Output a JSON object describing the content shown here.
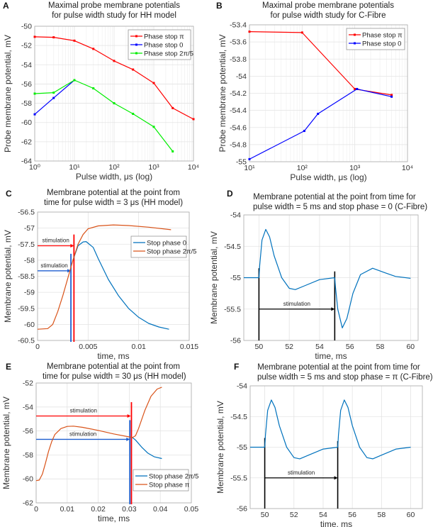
{
  "panels": [
    {
      "letter": "A",
      "title": [
        "Maximal probe membrane potentials",
        "for pulse width study for HH model"
      ]
    },
    {
      "letter": "B",
      "title": [
        "Maximal probe membrane potentials",
        "for pulse width study for C-Fibre"
      ]
    },
    {
      "letter": "C",
      "title": [
        "Membrane potential at the point from",
        "time for pulse width = 3 μs (HH model)"
      ]
    },
    {
      "letter": "D",
      "title": [
        "Membrane potential at the point from time for",
        "pulse width = 5 ms and stop phase = 0 (C-Fibre)"
      ]
    },
    {
      "letter": "E",
      "title": [
        "Membrane potential at the point from",
        "time for pulse width = 30 μs (HH model)"
      ]
    },
    {
      "letter": "F",
      "title": [
        "Membrane potential at the point from time for",
        "pulse width = 5 ms and stop phase = π (C-Fibre)"
      ]
    }
  ],
  "chart_data": [
    {
      "type": "line",
      "title": "Maximal probe membrane potentials for pulse width study for HH model",
      "xlabel": "Pulse width, μs (log)",
      "ylabel": "Probe membrane potential, mV",
      "xscale": "log",
      "xlim": [
        1,
        10000
      ],
      "ylim": [
        -64,
        -50
      ],
      "grid": true,
      "legend": "top-right",
      "markers": true,
      "xticks": [
        1,
        10,
        100,
        1000,
        10000
      ],
      "xticklabels": [
        "10⁰",
        "10¹",
        "10²",
        "10³",
        "10⁴"
      ],
      "yticks": [
        -64,
        -62,
        -60,
        -58,
        -56,
        -54,
        -52,
        -50
      ],
      "yticklabels": [
        "-64",
        "-62",
        "-60",
        "-58",
        "-56",
        "-54",
        "-52",
        "-50"
      ],
      "series": [
        {
          "name": "Phase stop π",
          "color": "#ff0000",
          "points": [
            [
              1,
              -51.1
            ],
            [
              3,
              -51.15
            ],
            [
              10,
              -51.5
            ],
            [
              30,
              -52.35
            ],
            [
              100,
              -53.6
            ],
            [
              300,
              -54.5
            ],
            [
              1000,
              -55.9
            ],
            [
              3000,
              -58.5
            ],
            [
              10000,
              -59.65
            ]
          ]
        },
        {
          "name": "Phase stop 0",
          "color": "#0000ff",
          "points": [
            [
              1,
              -59.15
            ],
            [
              3,
              -57.45
            ],
            [
              10,
              -55.6
            ]
          ]
        },
        {
          "name": "Phase stop 2π/5",
          "color": "#00ee00",
          "points": [
            [
              1,
              -57.0
            ],
            [
              3,
              -56.9
            ],
            [
              10,
              -55.6
            ],
            [
              30,
              -56.45
            ],
            [
              100,
              -58.0
            ],
            [
              300,
              -59.1
            ],
            [
              1000,
              -60.45
            ],
            [
              3000,
              -63.0
            ]
          ]
        }
      ]
    },
    {
      "type": "line",
      "title": "Maximal probe membrane potentials for pulse width study for C-Fibre",
      "xlabel": "Pulse width, μs (log)",
      "ylabel": "Probe membrane potential, mV",
      "xscale": "log",
      "xlim": [
        10,
        10000
      ],
      "ylim": [
        -55,
        -53.4
      ],
      "grid": true,
      "legend": "top-right",
      "markers": true,
      "xticks": [
        10,
        100,
        1000,
        10000
      ],
      "xticklabels": [
        "10¹",
        "10²",
        "10³",
        "10⁴"
      ],
      "yticks": [
        -55,
        -54.8,
        -54.6,
        -54.4,
        -54.2,
        -54,
        -53.8,
        -53.6,
        -53.4
      ],
      "yticklabels": [
        "-55",
        "-54.8",
        "-54.6",
        "-54.4",
        "-54.2",
        "-54",
        "-53.8",
        "-53.6",
        "-53.4"
      ],
      "series": [
        {
          "name": "Phase stop π",
          "color": "#ff0000",
          "points": [
            [
              10,
              -53.48
            ],
            [
              100,
              -53.49
            ],
            [
              1000,
              -54.15
            ],
            [
              5000,
              -54.22
            ]
          ]
        },
        {
          "name": "Phase stop 0",
          "color": "#0000ff",
          "points": [
            [
              10,
              -54.97
            ],
            [
              110,
              -54.64
            ],
            [
              200,
              -54.44
            ],
            [
              1100,
              -54.15
            ],
            [
              5000,
              -54.24
            ]
          ]
        }
      ]
    },
    {
      "type": "line",
      "title": "Membrane potential at the point from time for pulse width = 3 μs (HH model)",
      "xlabel": "time, ms",
      "ylabel": "Membrane potential, mV",
      "xscale": "linear",
      "xlim": [
        0,
        0.015
      ],
      "ylim": [
        -60.5,
        -56.5
      ],
      "grid": true,
      "legend": "top-right",
      "markers": false,
      "xticks": [
        0,
        0.005,
        0.01,
        0.015
      ],
      "xticklabels": [
        "0",
        "0.005",
        "0.01",
        "0.015"
      ],
      "yticks": [
        -60.5,
        -60,
        -59.5,
        -59,
        -58.5,
        -58,
        -57.5,
        -57,
        -56.5
      ],
      "yticklabels": [
        "-60.5",
        "-60",
        "-59.5",
        "-59",
        "-58.5",
        "-58",
        "-57.5",
        "-57",
        "-56.5"
      ],
      "series": [
        {
          "name": "Stop phase 0",
          "color": "#0072bd",
          "points": [
            [
              0.0035,
              -58.0
            ],
            [
              0.004,
              -57.55
            ],
            [
              0.0045,
              -57.43
            ],
            [
              0.0048,
              -57.42
            ],
            [
              0.0055,
              -57.6
            ],
            [
              0.006,
              -57.95
            ],
            [
              0.007,
              -58.6
            ],
            [
              0.008,
              -59.1
            ],
            [
              0.009,
              -59.5
            ],
            [
              0.01,
              -59.78
            ],
            [
              0.011,
              -59.97
            ],
            [
              0.012,
              -60.08
            ],
            [
              0.013,
              -60.15
            ]
          ]
        },
        {
          "name": "Stop phase 2π/5",
          "color": "#d95319",
          "points": [
            [
              0,
              -60.15
            ],
            [
              0.001,
              -60.13
            ],
            [
              0.0015,
              -60.0
            ],
            [
              0.002,
              -59.6
            ],
            [
              0.0025,
              -59.1
            ],
            [
              0.003,
              -58.55
            ],
            [
              0.0035,
              -58.0
            ],
            [
              0.004,
              -57.5
            ],
            [
              0.0045,
              -57.2
            ],
            [
              0.005,
              -57.02
            ],
            [
              0.006,
              -56.93
            ],
            [
              0.0075,
              -56.9
            ],
            [
              0.009,
              -56.92
            ],
            [
              0.011,
              -56.97
            ],
            [
              0.0132,
              -57.05
            ]
          ]
        }
      ],
      "annotations": [
        {
          "label": "stimulation",
          "color": "#ff0000",
          "y": -57.55,
          "x_start": 0,
          "x_end": 0.0036,
          "vline_x": 0.0036,
          "vline_y": [
            -57.2,
            -60.7
          ]
        },
        {
          "label": "stimulation",
          "color": "#1f5fd0",
          "y": -58.33,
          "x_start": 0,
          "x_end": 0.0033,
          "vline_x": 0.0033,
          "vline_y": [
            -57.8,
            -60.7
          ]
        }
      ]
    },
    {
      "type": "line",
      "title": "Membrane potential at the point from time for pulse width = 5 ms and stop phase = 0 (C-Fibre)",
      "xlabel": "time, ms",
      "ylabel": "Membrane potential, mV",
      "xscale": "linear",
      "xlim": [
        49,
        60.5
      ],
      "ylim": [
        -56,
        -54
      ],
      "grid": true,
      "legend": "none",
      "markers": false,
      "xticks": [
        50,
        52,
        54,
        56,
        58,
        60
      ],
      "xticklabels": [
        "50",
        "52",
        "54",
        "56",
        "58",
        "60"
      ],
      "yticks": [
        -56,
        -55.5,
        -55,
        -54.5,
        -54
      ],
      "yticklabels": [
        "-56",
        "-55.5",
        "-55",
        "-54.5",
        "-54"
      ],
      "series": [
        {
          "color": "#0072bd",
          "points": [
            [
              49,
              -55
            ],
            [
              50,
              -55
            ],
            [
              50.05,
              -54.8
            ],
            [
              50.2,
              -54.4
            ],
            [
              50.45,
              -54.23
            ],
            [
              50.7,
              -54.35
            ],
            [
              51,
              -54.65
            ],
            [
              51.5,
              -55.0
            ],
            [
              52,
              -55.17
            ],
            [
              52.4,
              -55.19
            ],
            [
              53,
              -55.13
            ],
            [
              54,
              -55.03
            ],
            [
              55,
              -55
            ],
            [
              55.05,
              -55.15
            ],
            [
              55.2,
              -55.5
            ],
            [
              55.5,
              -55.8
            ],
            [
              55.8,
              -55.65
            ],
            [
              56.2,
              -55.25
            ],
            [
              56.7,
              -54.95
            ],
            [
              57.5,
              -54.85
            ],
            [
              58.3,
              -54.92
            ],
            [
              59,
              -54.98
            ],
            [
              60,
              -55.01
            ]
          ]
        }
      ],
      "annotations": [
        {
          "label": "stimulation",
          "color": "#000000",
          "y": -55.5,
          "x_start": 50,
          "x_end": 55,
          "vline_x": 50,
          "vline_y": [
            -54.85,
            -56
          ]
        },
        {
          "label": "",
          "color": "#000000",
          "y": null,
          "vline_x": 55,
          "vline_y": [
            -54.9,
            -56
          ]
        }
      ]
    },
    {
      "type": "line",
      "title": "Membrane potential at the point from time for pulse width = 30 μs (HH model)",
      "xlabel": "time, ms",
      "ylabel": "Membrane potential, mV",
      "xscale": "linear",
      "xlim": [
        0,
        0.05
      ],
      "ylim": [
        -62,
        -52
      ],
      "grid": true,
      "legend": "bottom-right",
      "markers": false,
      "xticks": [
        0,
        0.01,
        0.02,
        0.03,
        0.04,
        0.05
      ],
      "xticklabels": [
        "0",
        "0.01",
        "0.02",
        "0.03",
        "0.04",
        "0.05"
      ],
      "yticks": [
        -62,
        -60,
        -58,
        -56,
        -54,
        -52
      ],
      "yticklabels": [
        "-62",
        "-60",
        "-58",
        "-56",
        "-54",
        "-52"
      ],
      "series": [
        {
          "name": "Stop phase 2π/5",
          "color": "#0072bd",
          "points": [
            [
              0.03,
              -56.5
            ],
            [
              0.031,
              -56.55
            ],
            [
              0.032,
              -56.75
            ],
            [
              0.034,
              -57.35
            ],
            [
              0.036,
              -57.85
            ],
            [
              0.038,
              -58.15
            ],
            [
              0.0405,
              -58.3
            ]
          ]
        },
        {
          "name": "Stop phase π",
          "color": "#d95319",
          "points": [
            [
              0,
              -60.15
            ],
            [
              0.001,
              -60.1
            ],
            [
              0.002,
              -59.6
            ],
            [
              0.003,
              -58.7
            ],
            [
              0.004,
              -57.7
            ],
            [
              0.005,
              -56.9
            ],
            [
              0.006,
              -56.3
            ],
            [
              0.008,
              -55.8
            ],
            [
              0.01,
              -55.62
            ],
            [
              0.012,
              -55.6
            ],
            [
              0.015,
              -55.7
            ],
            [
              0.02,
              -55.95
            ],
            [
              0.025,
              -56.25
            ],
            [
              0.03,
              -56.5
            ],
            [
              0.031,
              -56.55
            ],
            [
              0.032,
              -56.4
            ],
            [
              0.033,
              -55.8
            ],
            [
              0.035,
              -54.3
            ],
            [
              0.037,
              -53.1
            ],
            [
              0.039,
              -52.5
            ],
            [
              0.0405,
              -52.35
            ]
          ]
        }
      ],
      "annotations": [
        {
          "label": "stimulation",
          "color": "#ff0000",
          "y": -54.75,
          "x_start": 0,
          "x_end": 0.0305,
          "vline_x": 0.0307,
          "vline_y": [
            -53.6,
            -62.2
          ]
        },
        {
          "label": "stimulation",
          "color": "#1f5fd0",
          "y": -56.7,
          "x_start": 0,
          "x_end": 0.0302,
          "vline_x": 0.0302,
          "vline_y": [
            -55.1,
            -62.2
          ]
        }
      ]
    },
    {
      "type": "line",
      "title": "Membrane potential at the point from time for pulse width = 5 ms and stop phase = π (C-Fibre)",
      "xlabel": "time, ms",
      "ylabel": "Membrane potential, mV",
      "xscale": "linear",
      "xlim": [
        49,
        60.8
      ],
      "ylim": [
        -56,
        -54
      ],
      "grid": true,
      "legend": "none",
      "markers": false,
      "xticks": [
        50,
        52,
        54,
        56,
        58,
        60
      ],
      "xticklabels": [
        "50",
        "52",
        "54",
        "56",
        "58",
        "60"
      ],
      "yticks": [
        -56,
        -55.5,
        -55,
        -54.5,
        -54
      ],
      "yticklabels": [
        "-56",
        "-55.5",
        "-55",
        "-54.5",
        "-54"
      ],
      "series": [
        {
          "color": "#0072bd",
          "points": [
            [
              49,
              -55
            ],
            [
              50,
              -55
            ],
            [
              50.05,
              -54.8
            ],
            [
              50.2,
              -54.4
            ],
            [
              50.45,
              -54.23
            ],
            [
              50.7,
              -54.35
            ],
            [
              51,
              -54.65
            ],
            [
              51.5,
              -55.0
            ],
            [
              52,
              -55.17
            ],
            [
              52.4,
              -55.19
            ],
            [
              53,
              -55.13
            ],
            [
              54,
              -55.03
            ],
            [
              55,
              -55
            ],
            [
              55.05,
              -54.8
            ],
            [
              55.2,
              -54.4
            ],
            [
              55.45,
              -54.23
            ],
            [
              55.7,
              -54.35
            ],
            [
              56,
              -54.65
            ],
            [
              56.5,
              -55.0
            ],
            [
              57,
              -55.17
            ],
            [
              57.4,
              -55.19
            ],
            [
              58,
              -55.13
            ],
            [
              59,
              -55.03
            ],
            [
              60,
              -55
            ]
          ]
        }
      ],
      "annotations": [
        {
          "label": "stimulation",
          "color": "#000000",
          "y": -55.5,
          "x_start": 50,
          "x_end": 55,
          "vline_x": 50,
          "vline_y": [
            -54.85,
            -56
          ]
        },
        {
          "label": "",
          "color": "#000000",
          "y": null,
          "vline_x": 55,
          "vline_y": [
            -54.9,
            -56
          ]
        }
      ]
    }
  ]
}
